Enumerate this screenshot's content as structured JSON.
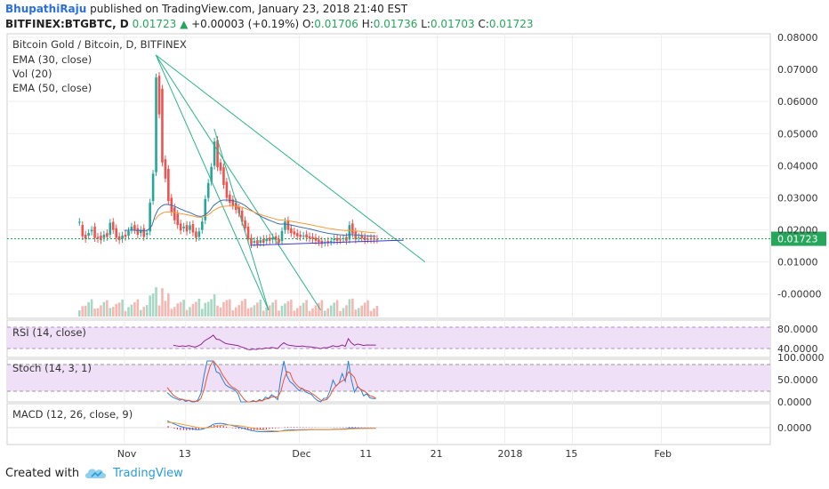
{
  "header": {
    "author": "BhupathiRaju",
    "published_text": "published on TradingView.com, January 23, 2018 21:40 EST",
    "symbol": "BITFINEX:BTGBTC, D",
    "last": "0.01723",
    "change_arrow": "▲",
    "change": "+0.00003 (+0.19%)",
    "open_label": "O:",
    "open": "0.01706",
    "high_label": "H:",
    "high": "0.01736",
    "low_label": "L:",
    "low": "0.01703",
    "close_label": "C:",
    "close": "0.01723"
  },
  "legend": {
    "title": "Bitcoin Gold / Bitcoin, D, BITFINEX",
    "ema30": "EMA (30, close)",
    "vol": "Vol (20)",
    "ema50": "EMA (50, close)",
    "rsi": "RSI (14, close)",
    "stoch": "Stoch (14, 3, 1)",
    "macd": "MACD (12, 26, close, 9)"
  },
  "footer": {
    "created_with": "Created with",
    "brand": "TradingView",
    "logo_icon": "cloud-logo-icon"
  },
  "colors": {
    "up": "#26a69a",
    "down": "#ef5350",
    "up_vol": "#a7d7c5",
    "down_vol": "#f5b7b1",
    "trend_green": "#2bb38a",
    "trend_blue": "#3b3bd1",
    "ema30": "#3b6fb0",
    "ema50": "#f29b3a",
    "rsi": "#8e2a8e",
    "stoch_k": "#2a7fd8",
    "stoch_d": "#e8553b",
    "macd": "#2a7fd8",
    "signal": "#f29b3a",
    "hist": "#c2185b",
    "price_tag": "#26a65b"
  },
  "chart_data": [
    {
      "type": "candlestick",
      "title": "Bitcoin Gold / Bitcoin, D, BITFINEX",
      "ylim": [
        -0.007,
        0.08
      ],
      "y_ticks": [
        "0.08000",
        "0.07000",
        "0.06000",
        "0.05000",
        "0.04000",
        "0.03000",
        "0.02000",
        "0.01000",
        "-0.00000"
      ],
      "y_tick_values": [
        0.08,
        0.07,
        0.06,
        0.05,
        0.04,
        0.03,
        0.02,
        0.01,
        0.0
      ],
      "x_ticks": [
        "Nov",
        "13",
        "Dec",
        "11",
        "21",
        "2018",
        "15",
        "Feb"
      ],
      "x_tick_index": [
        15,
        35,
        72,
        94,
        117,
        139,
        161,
        190
      ],
      "last_price": "0.01723",
      "last_price_value": 0.01723,
      "candles_ohc": [
        [
          0.0225,
          0.0215,
          0.0225
        ],
        [
          0.0215,
          0.0185,
          0.018
        ],
        [
          0.0185,
          0.0182,
          0.0172
        ],
        [
          0.0182,
          0.0195,
          0.019
        ],
        [
          0.0195,
          0.021,
          0.02
        ],
        [
          0.021,
          0.0178,
          0.0175
        ],
        [
          0.0178,
          0.0182,
          0.0172
        ],
        [
          0.0182,
          0.0175,
          0.0168
        ],
        [
          0.0175,
          0.019,
          0.0185
        ],
        [
          0.019,
          0.0185,
          0.0178
        ],
        [
          0.0185,
          0.0225,
          0.0222
        ],
        [
          0.0225,
          0.0205,
          0.02
        ],
        [
          0.0205,
          0.018,
          0.0175
        ],
        [
          0.018,
          0.0172,
          0.0168
        ],
        [
          0.0172,
          0.0185,
          0.0182
        ],
        [
          0.0185,
          0.0182,
          0.0178
        ],
        [
          0.0182,
          0.02,
          0.0196
        ],
        [
          0.02,
          0.0215,
          0.021
        ],
        [
          0.0215,
          0.0205,
          0.02
        ],
        [
          0.0205,
          0.019,
          0.0185
        ],
        [
          0.019,
          0.0205,
          0.02
        ],
        [
          0.0205,
          0.0185,
          0.0178
        ],
        [
          0.0185,
          0.0195,
          0.019
        ],
        [
          0.0195,
          0.029,
          0.0285
        ],
        [
          0.029,
          0.038,
          0.0375
        ],
        [
          0.038,
          0.068,
          0.0675
        ],
        [
          0.068,
          0.064,
          0.056
        ],
        [
          0.064,
          0.042,
          0.041
        ],
        [
          0.042,
          0.039,
          0.036
        ],
        [
          0.039,
          0.03,
          0.029
        ],
        [
          0.03,
          0.027,
          0.0255
        ],
        [
          0.027,
          0.025,
          0.023
        ],
        [
          0.025,
          0.022,
          0.0215
        ],
        [
          0.022,
          0.0205,
          0.0198
        ],
        [
          0.0205,
          0.0215,
          0.021
        ],
        [
          0.0215,
          0.02,
          0.0195
        ],
        [
          0.02,
          0.0218,
          0.0214
        ],
        [
          0.0218,
          0.0195,
          0.0192
        ],
        [
          0.0195,
          0.0178,
          0.0175
        ],
        [
          0.0178,
          0.02,
          0.0195
        ],
        [
          0.02,
          0.023,
          0.0226
        ],
        [
          0.023,
          0.03,
          0.0296
        ],
        [
          0.03,
          0.035,
          0.0346
        ],
        [
          0.035,
          0.04,
          0.0396
        ],
        [
          0.04,
          0.048,
          0.0475
        ],
        [
          0.048,
          0.041,
          0.0395
        ],
        [
          0.041,
          0.0395,
          0.0385
        ],
        [
          0.0395,
          0.035,
          0.034
        ],
        [
          0.035,
          0.031,
          0.03
        ],
        [
          0.031,
          0.0295,
          0.0285
        ],
        [
          0.0295,
          0.0285,
          0.0275
        ],
        [
          0.0285,
          0.027,
          0.0262
        ],
        [
          0.027,
          0.026,
          0.0252
        ],
        [
          0.026,
          0.023,
          0.0225
        ],
        [
          0.023,
          0.021,
          0.0205
        ],
        [
          0.021,
          0.0175,
          0.017
        ],
        [
          0.0175,
          0.016,
          0.0155
        ],
        [
          0.016,
          0.0168,
          0.0165
        ],
        [
          0.0168,
          0.016,
          0.0155
        ],
        [
          0.016,
          0.0172,
          0.0168
        ],
        [
          0.0172,
          0.0165,
          0.016
        ],
        [
          0.0165,
          0.0176,
          0.0172
        ],
        [
          0.0176,
          0.017,
          0.0166
        ],
        [
          0.017,
          0.018,
          0.0176
        ],
        [
          0.018,
          0.0172,
          0.0168
        ],
        [
          0.0172,
          0.0165,
          0.016
        ],
        [
          0.0165,
          0.02,
          0.0196
        ],
        [
          0.02,
          0.023,
          0.0226
        ],
        [
          0.023,
          0.0205,
          0.02
        ],
        [
          0.0205,
          0.0195,
          0.019
        ],
        [
          0.0195,
          0.019,
          0.0186
        ],
        [
          0.019,
          0.0185,
          0.018
        ],
        [
          0.0185,
          0.0182,
          0.0178
        ],
        [
          0.0182,
          0.0186,
          0.0182
        ],
        [
          0.0186,
          0.018,
          0.0176
        ],
        [
          0.018,
          0.0178,
          0.0174
        ],
        [
          0.0178,
          0.0176,
          0.0172
        ],
        [
          0.0176,
          0.017,
          0.0166
        ],
        [
          0.017,
          0.0166,
          0.0162
        ],
        [
          0.0166,
          0.016,
          0.0156
        ],
        [
          0.016,
          0.0165,
          0.0162
        ],
        [
          0.0165,
          0.0163,
          0.016
        ],
        [
          0.0163,
          0.0168,
          0.0165
        ],
        [
          0.0168,
          0.0175,
          0.0172
        ],
        [
          0.0175,
          0.017,
          0.0166
        ],
        [
          0.017,
          0.0172,
          0.0168
        ],
        [
          0.0172,
          0.0178,
          0.0174
        ],
        [
          0.0178,
          0.017,
          0.0166
        ],
        [
          0.017,
          0.022,
          0.0215
        ],
        [
          0.022,
          0.0195,
          0.0188
        ],
        [
          0.0195,
          0.0175,
          0.017
        ],
        [
          0.0175,
          0.0182,
          0.0178
        ],
        [
          0.0182,
          0.0178,
          0.0174
        ],
        [
          0.0178,
          0.0172,
          0.0168
        ],
        [
          0.0172,
          0.0175,
          0.0171
        ],
        [
          0.0175,
          0.0173,
          0.017
        ],
        [
          0.0173,
          0.0172,
          0.017
        ],
        [
          0.0172,
          0.0172,
          0.017
        ]
      ]
    },
    {
      "type": "line",
      "title": "RSI (14, close)",
      "y_ticks": [
        "80.0000",
        "40.0000"
      ],
      "y_tick_values": [
        80,
        40
      ]
    },
    {
      "type": "line",
      "title": "Stoch (14, 3, 1)",
      "y_ticks": [
        "100.0000",
        "50.0000",
        "0.0000"
      ],
      "y_tick_values": [
        100,
        50,
        0
      ]
    },
    {
      "type": "line",
      "title": "MACD (12, 26, close, 9)",
      "y_ticks": [
        "0.0000"
      ],
      "y_tick_values": [
        0
      ]
    }
  ]
}
